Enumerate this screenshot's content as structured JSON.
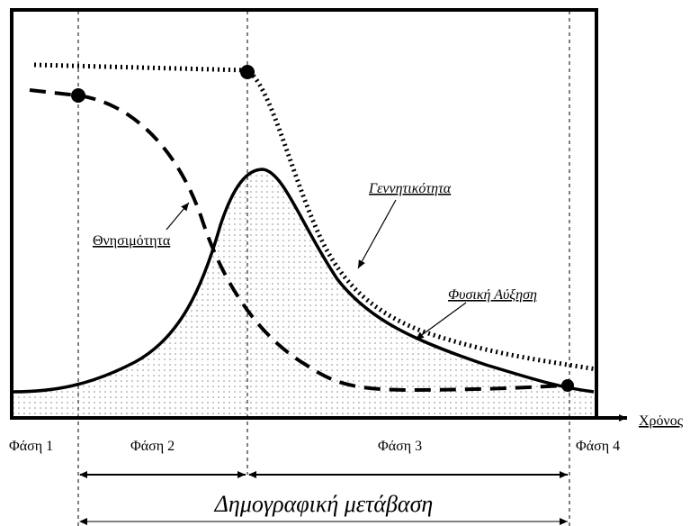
{
  "diagram": {
    "labels": {
      "birth_rate": "Γεννητικότητα",
      "death_rate": "Θνησιμότητα",
      "natural_increase": "Φυσική Αύξηση"
    },
    "x_axis_label": "Χρόνος",
    "phases": [
      "Φάση 1",
      "Φάση 2",
      "Φάση 3",
      "Φάση 4"
    ],
    "transition_label": "Δημογραφική μετάβαση"
  }
}
